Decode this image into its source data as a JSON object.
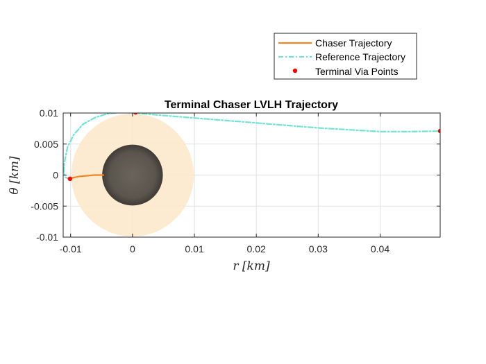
{
  "chart_data": {
    "type": "line",
    "title": "Terminal Chaser LVLH Trajectory",
    "xlabel": "r [km]",
    "ylabel": "θ [km]",
    "xlim": [
      -0.0112,
      0.0497
    ],
    "ylim": [
      -0.01,
      0.01
    ],
    "xticks": [
      -0.01,
      0,
      0.01,
      0.02,
      0.03,
      0.04
    ],
    "xtick_labels": [
      "-0.01",
      "0",
      "0.01",
      "0.02",
      "0.03",
      "0.04"
    ],
    "yticks": [
      -0.01,
      -0.005,
      0,
      0.005,
      0.01
    ],
    "ytick_labels": [
      "-0.01",
      "-0.005",
      "0",
      "0.005",
      "0.01"
    ],
    "grid": true,
    "legend_position": "top-right, outside above axes",
    "series": [
      {
        "name": "Chaser Trajectory",
        "style": "solid",
        "color": "#f28522",
        "x": [
          -0.0101,
          -0.0095,
          -0.0085,
          -0.0072,
          -0.0062,
          -0.0055,
          -0.005,
          -0.0047
        ],
        "y": [
          -0.0006,
          -0.0004,
          -0.0002,
          -0.0001,
          0.0,
          0.0,
          0.0,
          0.0
        ]
      },
      {
        "name": "Reference Trajectory",
        "style": "dash-dot",
        "color": "#6fe3d4",
        "x": [
          -0.0101,
          -0.0108,
          -0.0111,
          -0.011,
          -0.0105,
          -0.0095,
          -0.008,
          -0.006,
          -0.004,
          -0.002,
          0.0005,
          0.005,
          0.01,
          0.015,
          0.02,
          0.025,
          0.03,
          0.035,
          0.04,
          0.045,
          0.0497
        ],
        "y": [
          -0.0006,
          -0.0004,
          0.0005,
          0.002,
          0.0045,
          0.0065,
          0.0082,
          0.0093,
          0.0099,
          0.0101,
          0.01,
          0.0096,
          0.0092,
          0.0088,
          0.0084,
          0.008,
          0.0076,
          0.0073,
          0.007,
          0.007,
          0.0071
        ]
      },
      {
        "name": "Terminal Via Points",
        "style": "markers",
        "color": "#ff0000",
        "x": [
          -0.0101,
          0.0005,
          0.0497
        ],
        "y": [
          -0.0006,
          0.0101,
          0.0071
        ]
      }
    ],
    "regions": [
      {
        "kind": "keep-out zone",
        "shape": "circle",
        "center": [
          0,
          0
        ],
        "radius": 0.0099,
        "color": "#fde9cc"
      },
      {
        "kind": "target body",
        "shape": "circle",
        "center": [
          0,
          0
        ],
        "radius": 0.0049,
        "color": "#5a554d"
      }
    ]
  }
}
